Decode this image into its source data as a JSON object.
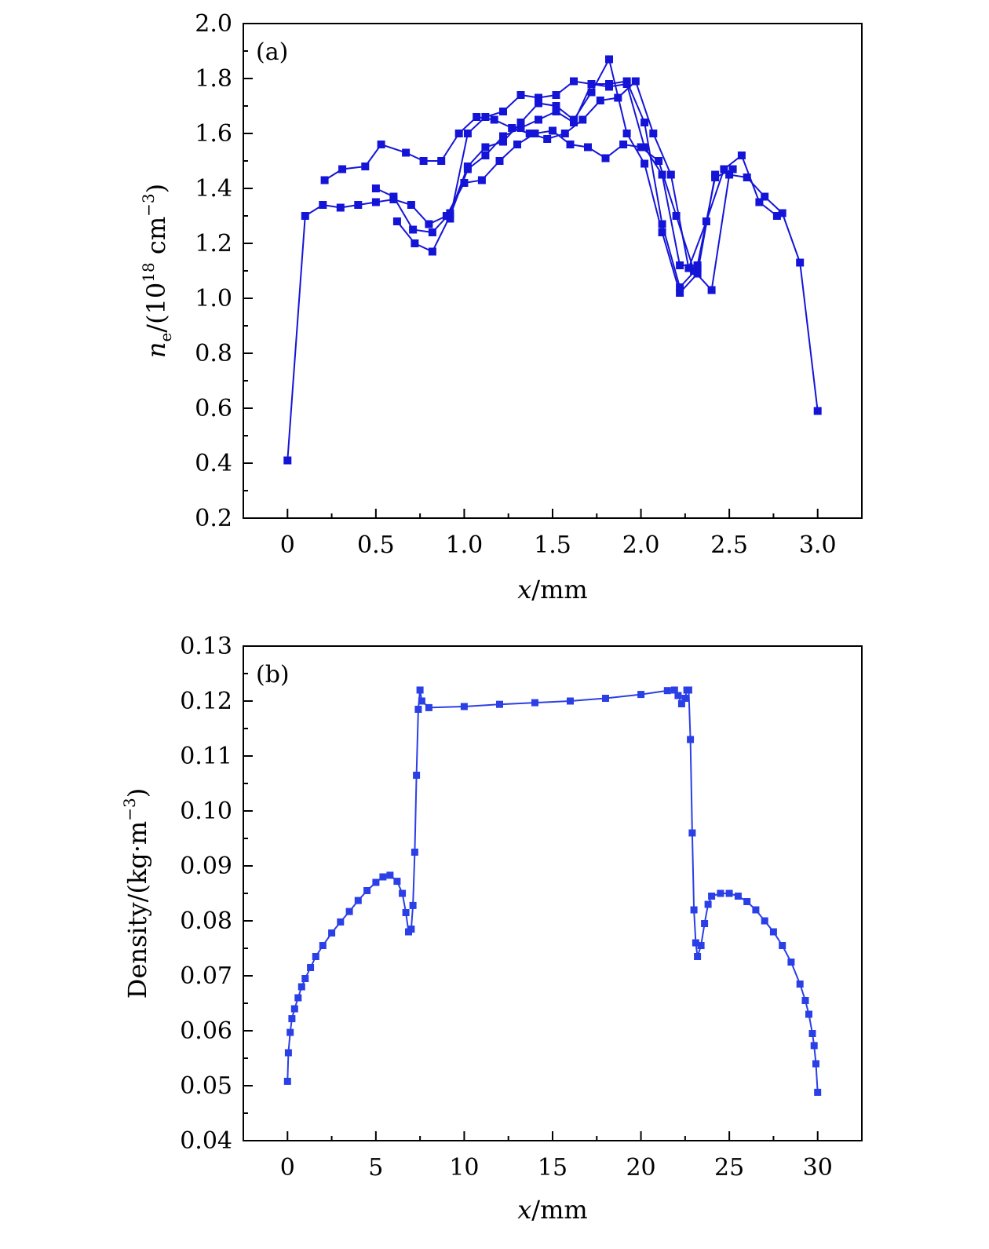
{
  "colors": {
    "series": "#1414d8",
    "series_b": "#2a3fe6",
    "axis": "#000000"
  },
  "chart_data": [
    {
      "type": "line",
      "panel_label": "(a)",
      "xlabel": "x/mm",
      "ylabel": "ne/(10^18 cm^-3)",
      "xlim": [
        -0.25,
        3.25
      ],
      "ylim": [
        0.2,
        2.0
      ],
      "x_ticks": [
        0,
        0.5,
        1.0,
        1.5,
        2.0,
        2.5,
        3.0
      ],
      "x_tick_labels": [
        "0",
        "0.5",
        "1.0",
        "1.5",
        "2.0",
        "2.5",
        "3.0"
      ],
      "y_ticks": [
        0.2,
        0.4,
        0.6,
        0.8,
        1.0,
        1.2,
        1.4,
        1.6,
        1.8,
        2.0
      ],
      "y_tick_labels": [
        "0.2",
        "0.4",
        "0.6",
        "0.8",
        "1.0",
        "1.2",
        "1.4",
        "1.6",
        "1.8",
        "2.0"
      ],
      "marker": "square",
      "grid": false,
      "series": [
        {
          "x": [
            0.0,
            0.1,
            0.2,
            0.3,
            0.4,
            0.5,
            0.6,
            0.7,
            0.8,
            0.9,
            1.0,
            1.1,
            1.2,
            1.3,
            1.4,
            1.5,
            1.6,
            1.7,
            1.8,
            1.9,
            2.0,
            2.1,
            2.2,
            2.3,
            2.4,
            2.5,
            2.6,
            2.7,
            2.8,
            2.9,
            3.0
          ],
          "y": [
            0.41,
            1.3,
            1.34,
            1.33,
            1.34,
            1.35,
            1.36,
            1.34,
            1.27,
            1.3,
            1.42,
            1.43,
            1.5,
            1.56,
            1.6,
            1.61,
            1.56,
            1.55,
            1.51,
            1.56,
            1.55,
            1.5,
            1.3,
            1.1,
            1.03,
            1.45,
            1.44,
            1.37,
            1.31,
            1.13,
            0.59
          ]
        },
        {
          "x": [
            0.21,
            0.31,
            0.44,
            0.53,
            0.67,
            0.77,
            0.87,
            0.97,
            1.07,
            1.17,
            1.27,
            1.37,
            1.47,
            1.57,
            1.67,
            1.77,
            1.87,
            1.97,
            2.07,
            2.17,
            2.27,
            2.37,
            2.47,
            2.57,
            2.67,
            2.77
          ],
          "y": [
            1.43,
            1.47,
            1.48,
            1.56,
            1.53,
            1.5,
            1.5,
            1.6,
            1.66,
            1.65,
            1.62,
            1.6,
            1.58,
            1.6,
            1.65,
            1.72,
            1.73,
            1.79,
            1.6,
            1.45,
            1.11,
            1.28,
            1.47,
            1.52,
            1.35,
            1.3
          ]
        },
        {
          "x": [
            0.5,
            0.6,
            0.71,
            0.82,
            0.92,
            1.02,
            1.12,
            1.22,
            1.32,
            1.42,
            1.52,
            1.62,
            1.72,
            1.82,
            1.92,
            2.02,
            2.12,
            2.22,
            2.32,
            2.42
          ],
          "y": [
            1.4,
            1.37,
            1.25,
            1.24,
            1.31,
            1.48,
            1.55,
            1.57,
            1.64,
            1.71,
            1.7,
            1.65,
            1.75,
            1.87,
            1.6,
            1.49,
            1.24,
            1.02,
            1.09,
            1.45
          ]
        },
        {
          "x": [
            0.62,
            0.72,
            0.82,
            0.92,
            1.02,
            1.12,
            1.22,
            1.32,
            1.42,
            1.52,
            1.62,
            1.72,
            1.82,
            1.92,
            2.02,
            2.12,
            2.22,
            2.32,
            2.42,
            2.52
          ],
          "y": [
            1.28,
            1.2,
            1.17,
            1.3,
            1.47,
            1.52,
            1.59,
            1.62,
            1.65,
            1.68,
            1.64,
            1.78,
            1.77,
            1.78,
            1.55,
            1.45,
            1.12,
            1.12,
            1.44,
            1.47
          ]
        },
        {
          "x": [
            0.92,
            1.02,
            1.12,
            1.22,
            1.32,
            1.42,
            1.52,
            1.62,
            1.72,
            1.82,
            1.92,
            2.02,
            2.12,
            2.22,
            2.32
          ],
          "y": [
            1.29,
            1.6,
            1.66,
            1.68,
            1.74,
            1.73,
            1.74,
            1.79,
            1.78,
            1.78,
            1.79,
            1.64,
            1.27,
            1.04,
            1.11
          ]
        }
      ]
    },
    {
      "type": "scatter",
      "panel_label": "(b)",
      "xlabel": "x/mm",
      "ylabel": "Density/(kg·m^-3)",
      "xlim": [
        -2.5,
        32.5
      ],
      "ylim": [
        0.04,
        0.13
      ],
      "x_ticks": [
        0,
        5,
        10,
        15,
        20,
        25,
        30
      ],
      "x_tick_labels": [
        "0",
        "5",
        "10",
        "15",
        "20",
        "25",
        "30"
      ],
      "y_ticks": [
        0.04,
        0.05,
        0.06,
        0.07,
        0.08,
        0.09,
        0.1,
        0.11,
        0.12,
        0.13
      ],
      "y_tick_labels": [
        "0.04",
        "0.05",
        "0.06",
        "0.07",
        "0.08",
        "0.09",
        "0.10",
        "0.11",
        "0.12",
        "0.13"
      ],
      "marker": "square",
      "grid": false,
      "series": [
        {
          "x": [
            0.0,
            0.05,
            0.15,
            0.25,
            0.4,
            0.6,
            0.8,
            1.0,
            1.3,
            1.6,
            2.0,
            2.5,
            3.0,
            3.5,
            4.0,
            4.5,
            5.0,
            5.4,
            5.8,
            6.2,
            6.5,
            6.7,
            6.85,
            7.0,
            7.1,
            7.2,
            7.3,
            7.4,
            7.5,
            7.6,
            8.0,
            10.0,
            12.0,
            14.0,
            16.0,
            18.0,
            20.0,
            21.5,
            21.9,
            22.1,
            22.3,
            22.5,
            22.6,
            22.7,
            22.8,
            22.9,
            23.0,
            23.1,
            23.2,
            23.4,
            23.6,
            23.8,
            24.0,
            24.5,
            25.0,
            25.5,
            26.0,
            26.5,
            27.0,
            27.5,
            28.0,
            28.5,
            29.0,
            29.3,
            29.5,
            29.7,
            29.8,
            29.9,
            30.0
          ],
          "y": [
            0.0508,
            0.056,
            0.0597,
            0.0622,
            0.064,
            0.066,
            0.068,
            0.0695,
            0.0715,
            0.0735,
            0.0755,
            0.0778,
            0.0798,
            0.0817,
            0.0837,
            0.0855,
            0.087,
            0.088,
            0.0883,
            0.0872,
            0.085,
            0.0815,
            0.078,
            0.0785,
            0.0828,
            0.0925,
            0.1065,
            0.1185,
            0.122,
            0.12,
            0.1188,
            0.119,
            0.1194,
            0.1197,
            0.12,
            0.1205,
            0.1212,
            0.1219,
            0.122,
            0.121,
            0.1195,
            0.1205,
            0.122,
            0.122,
            0.113,
            0.096,
            0.082,
            0.076,
            0.0735,
            0.0755,
            0.0795,
            0.083,
            0.0845,
            0.085,
            0.085,
            0.0845,
            0.0835,
            0.082,
            0.08,
            0.078,
            0.0755,
            0.0725,
            0.0685,
            0.0655,
            0.063,
            0.0595,
            0.0573,
            0.054,
            0.0488
          ]
        }
      ]
    }
  ]
}
